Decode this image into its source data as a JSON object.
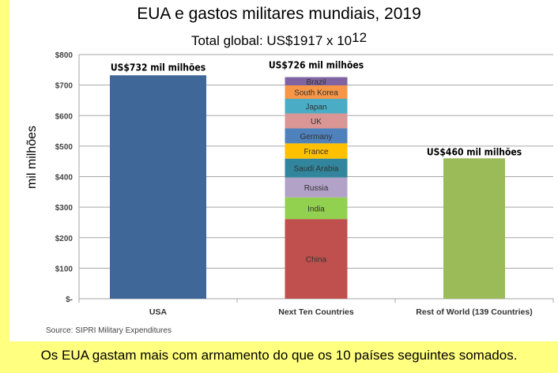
{
  "caption": "Os EUA gastam mais com armamento do que os 10 países seguintes somados.",
  "source": "Source: SIPRI Military Expenditures",
  "chart_data": {
    "type": "bar",
    "title": "EUA e gastos militares mundiais, 2019",
    "subtitle": "Total global: US$1917 x 10",
    "subtitle_exponent": "12",
    "ylabel": "mil milhões",
    "xlabel": "",
    "ylim": [
      0,
      800
    ],
    "yticks": [
      0,
      100,
      200,
      300,
      400,
      500,
      600,
      700,
      800
    ],
    "ytick_labels": [
      "$-",
      "$100",
      "$200",
      "$300",
      "$400",
      "$500",
      "$600",
      "$700",
      "$800"
    ],
    "grid": true,
    "legend": "none",
    "categories": [
      "USA",
      "Next Ten Countries",
      "Rest of World (139 Countries)"
    ],
    "data_labels": [
      "US$732 mil milhões",
      "US$726 mil milhões",
      "US$460 mil milhões"
    ],
    "bars": [
      {
        "category": "USA",
        "value": 732,
        "color": "#3f6797"
      },
      {
        "category": "Next Ten Countries",
        "stacked": true,
        "segments": [
          {
            "name": "China",
            "value": 261,
            "color": "#c0504d"
          },
          {
            "name": "India",
            "value": 71,
            "color": "#92d050"
          },
          {
            "name": "Russia",
            "value": 65,
            "color": "#b3a2c7"
          },
          {
            "name": "Saudi Arabia",
            "value": 62,
            "color": "#31859c"
          },
          {
            "name": "France",
            "value": 50,
            "color": "#ffc000"
          },
          {
            "name": "Germany",
            "value": 49,
            "color": "#4f81bd"
          },
          {
            "name": "UK",
            "value": 49,
            "color": "#d99694"
          },
          {
            "name": "Japan",
            "value": 48,
            "color": "#4bacc6"
          },
          {
            "name": "South Korea",
            "value": 44,
            "color": "#f79646"
          },
          {
            "name": "Brazil",
            "value": 27,
            "color": "#8064a2"
          }
        ]
      },
      {
        "category": "Rest of World (139 Countries)",
        "value": 460,
        "color": "#9bbb59"
      }
    ]
  }
}
